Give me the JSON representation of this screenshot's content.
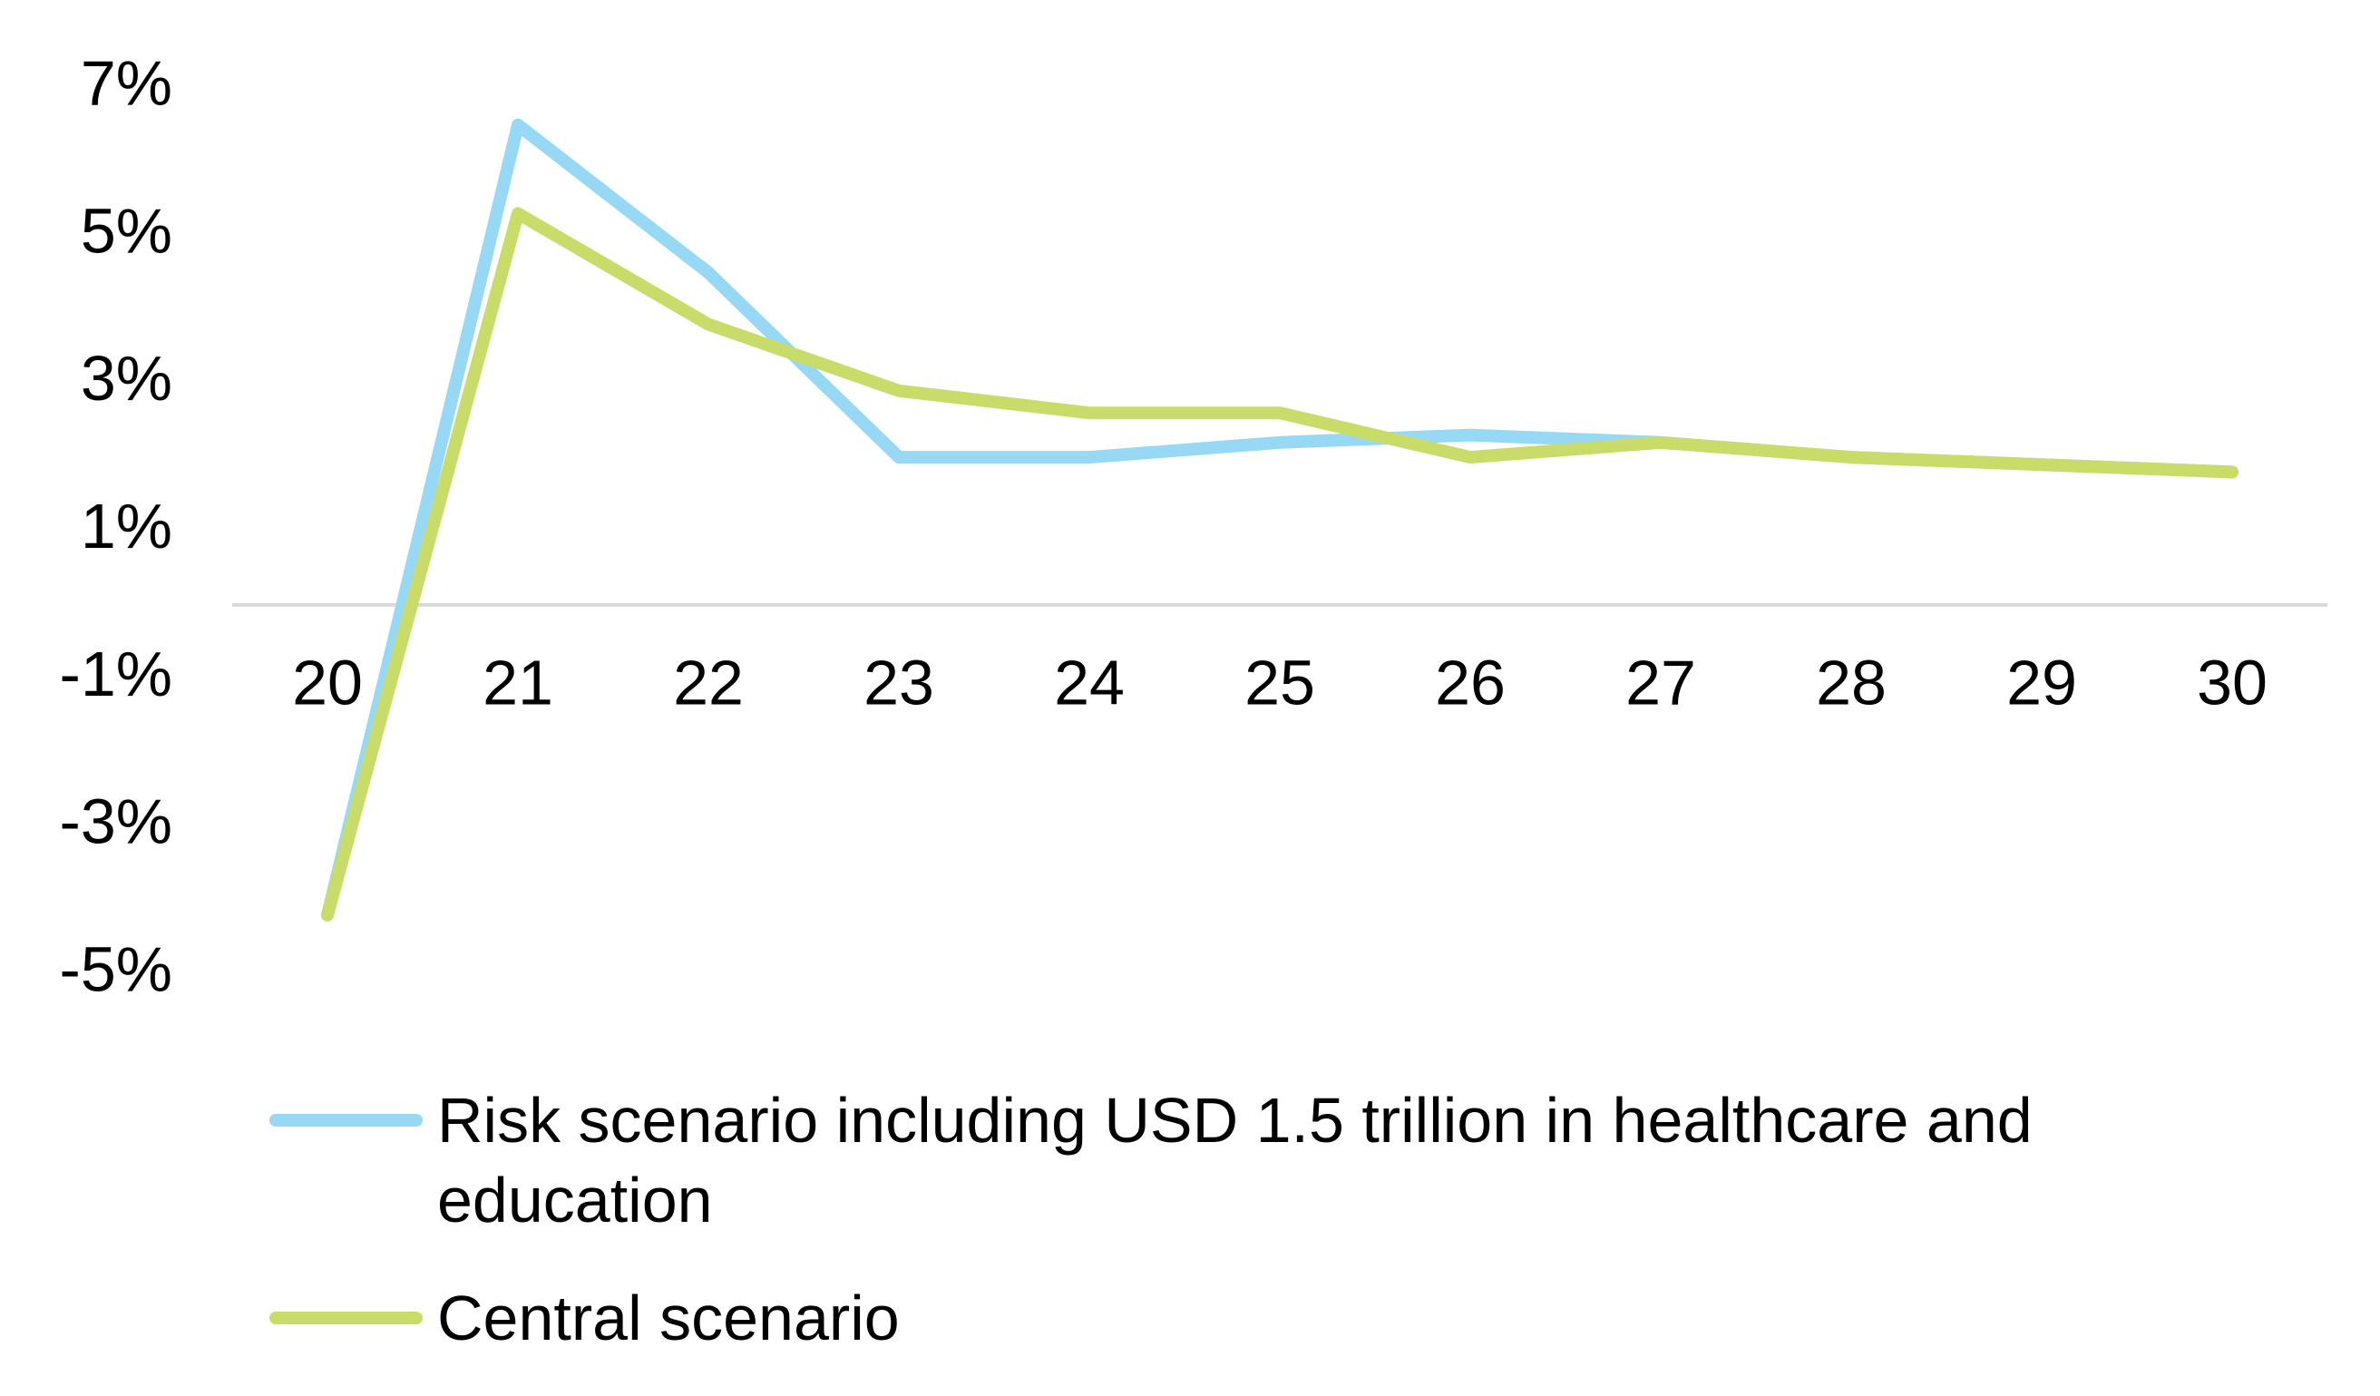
{
  "chart_data": {
    "type": "line",
    "categories": [
      "20",
      "21",
      "22",
      "23",
      "24",
      "25",
      "26",
      "27",
      "28",
      "29",
      "30"
    ],
    "series": [
      {
        "name": "Risk scenario including USD 1.5 trillion in healthcare and education",
        "color": "#97d9f5",
        "values": [
          -4.2,
          6.5,
          4.5,
          2.0,
          2.0,
          2.2,
          2.3,
          2.2,
          2.0,
          1.9,
          1.8
        ]
      },
      {
        "name": "Central scenario",
        "color": "#c9dc6a",
        "values": [
          -4.2,
          5.3,
          3.8,
          2.9,
          2.6,
          2.6,
          2.0,
          2.2,
          2.0,
          1.9,
          1.8
        ]
      }
    ],
    "ylim": [
      -5,
      7
    ],
    "yticks": [
      {
        "value": -5,
        "label": "-5%"
      },
      {
        "value": -3,
        "label": "-3%"
      },
      {
        "value": -1,
        "label": "-1%"
      },
      {
        "value": 1,
        "label": "1%"
      },
      {
        "value": 3,
        "label": "3%"
      },
      {
        "value": 5,
        "label": "5%"
      },
      {
        "value": 7,
        "label": "7%"
      }
    ],
    "grid": false
  }
}
